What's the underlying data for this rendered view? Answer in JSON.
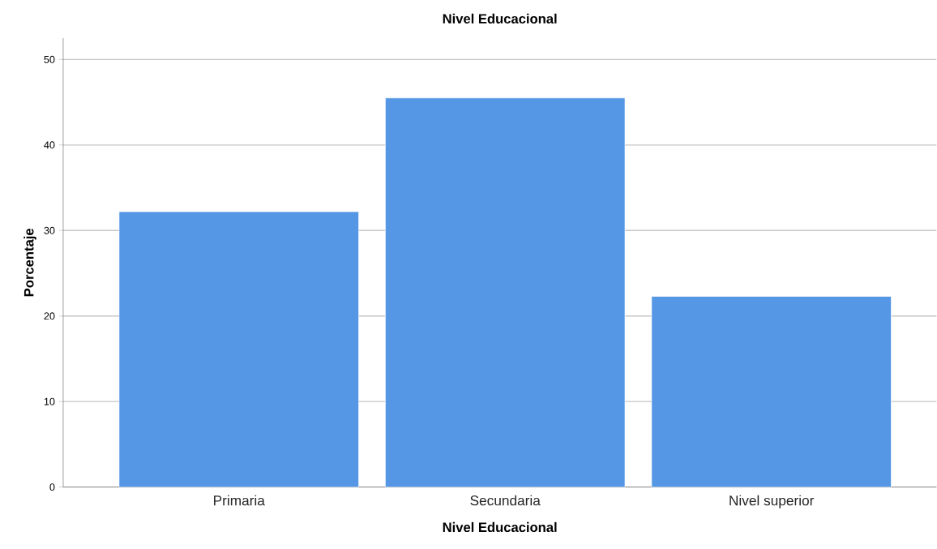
{
  "chart_data": {
    "type": "bar",
    "title": "Nivel Educacional",
    "xlabel": "Nivel Educacional",
    "ylabel": "Porcentaje",
    "categories": [
      "Primaria",
      "Secundaria",
      "Nivel superior"
    ],
    "values": [
      32.2,
      45.5,
      22.3
    ],
    "color": "#5596e5",
    "ylim": [
      0,
      52.5
    ],
    "yticks": [
      0,
      10,
      20,
      30,
      40,
      50
    ],
    "grid": "y"
  }
}
